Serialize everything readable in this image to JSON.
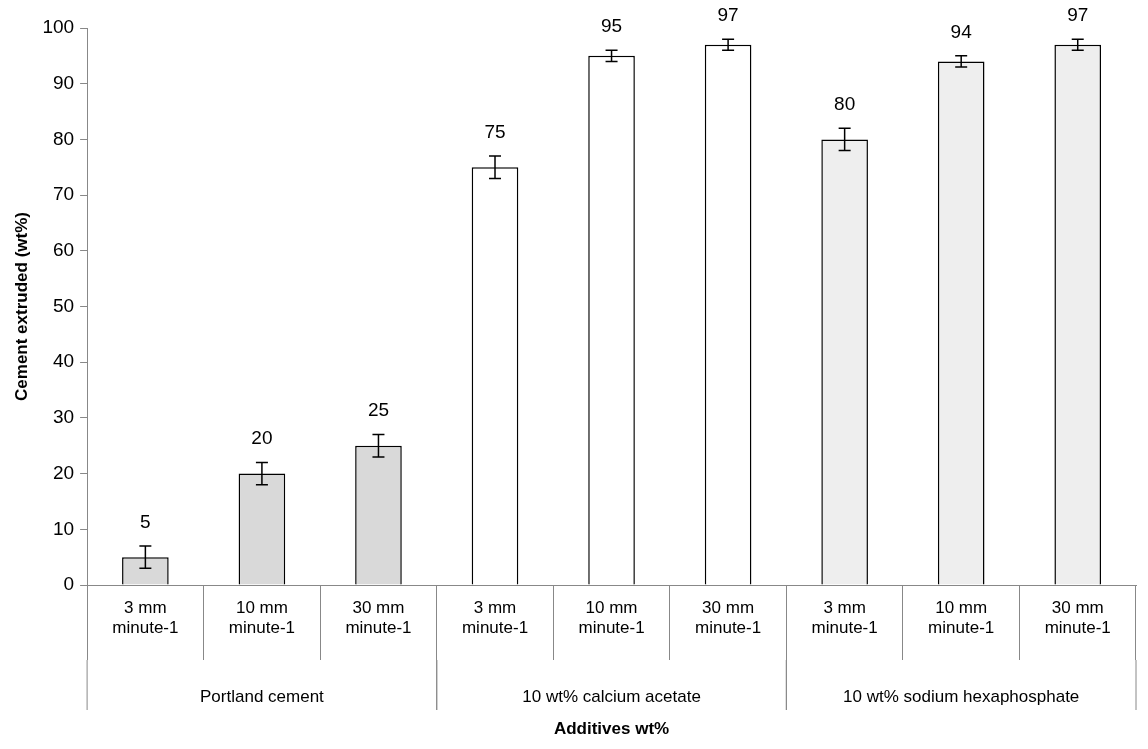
{
  "chart_data": {
    "type": "bar",
    "xlabel": "Additives wt%",
    "ylabel": "Cement extruded (wt%)",
    "categories": [
      "3 mm minute-1",
      "10 mm minute-1",
      "30 mm minute-1",
      "3 mm minute-1",
      "10 mm minute-1",
      "30 mm minute-1",
      "3 mm minute-1",
      "10 mm minute-1",
      "30 mm minute-1"
    ],
    "values": [
      5,
      20,
      25,
      75,
      95,
      97,
      80,
      94,
      97
    ],
    "errors": [
      2,
      2,
      2,
      2,
      1,
      1,
      2,
      1,
      1
    ],
    "colors": [
      "#d9d9d9",
      "#d9d9d9",
      "#d9d9d9",
      "#ffffff",
      "#ffffff",
      "#ffffff",
      "#eeeeee",
      "#eeeeee",
      "#eeeeee"
    ],
    "annotations": [
      "Portland cement",
      "10 wt% calcium acetate",
      "10 wt% sodium hexaphosphate"
    ],
    "ylim": [
      0,
      100
    ],
    "yticks": [
      0,
      10,
      20,
      30,
      40,
      50,
      60,
      70,
      80,
      90,
      100
    ],
    "data_labels": true,
    "grid": false,
    "legend": false
  }
}
